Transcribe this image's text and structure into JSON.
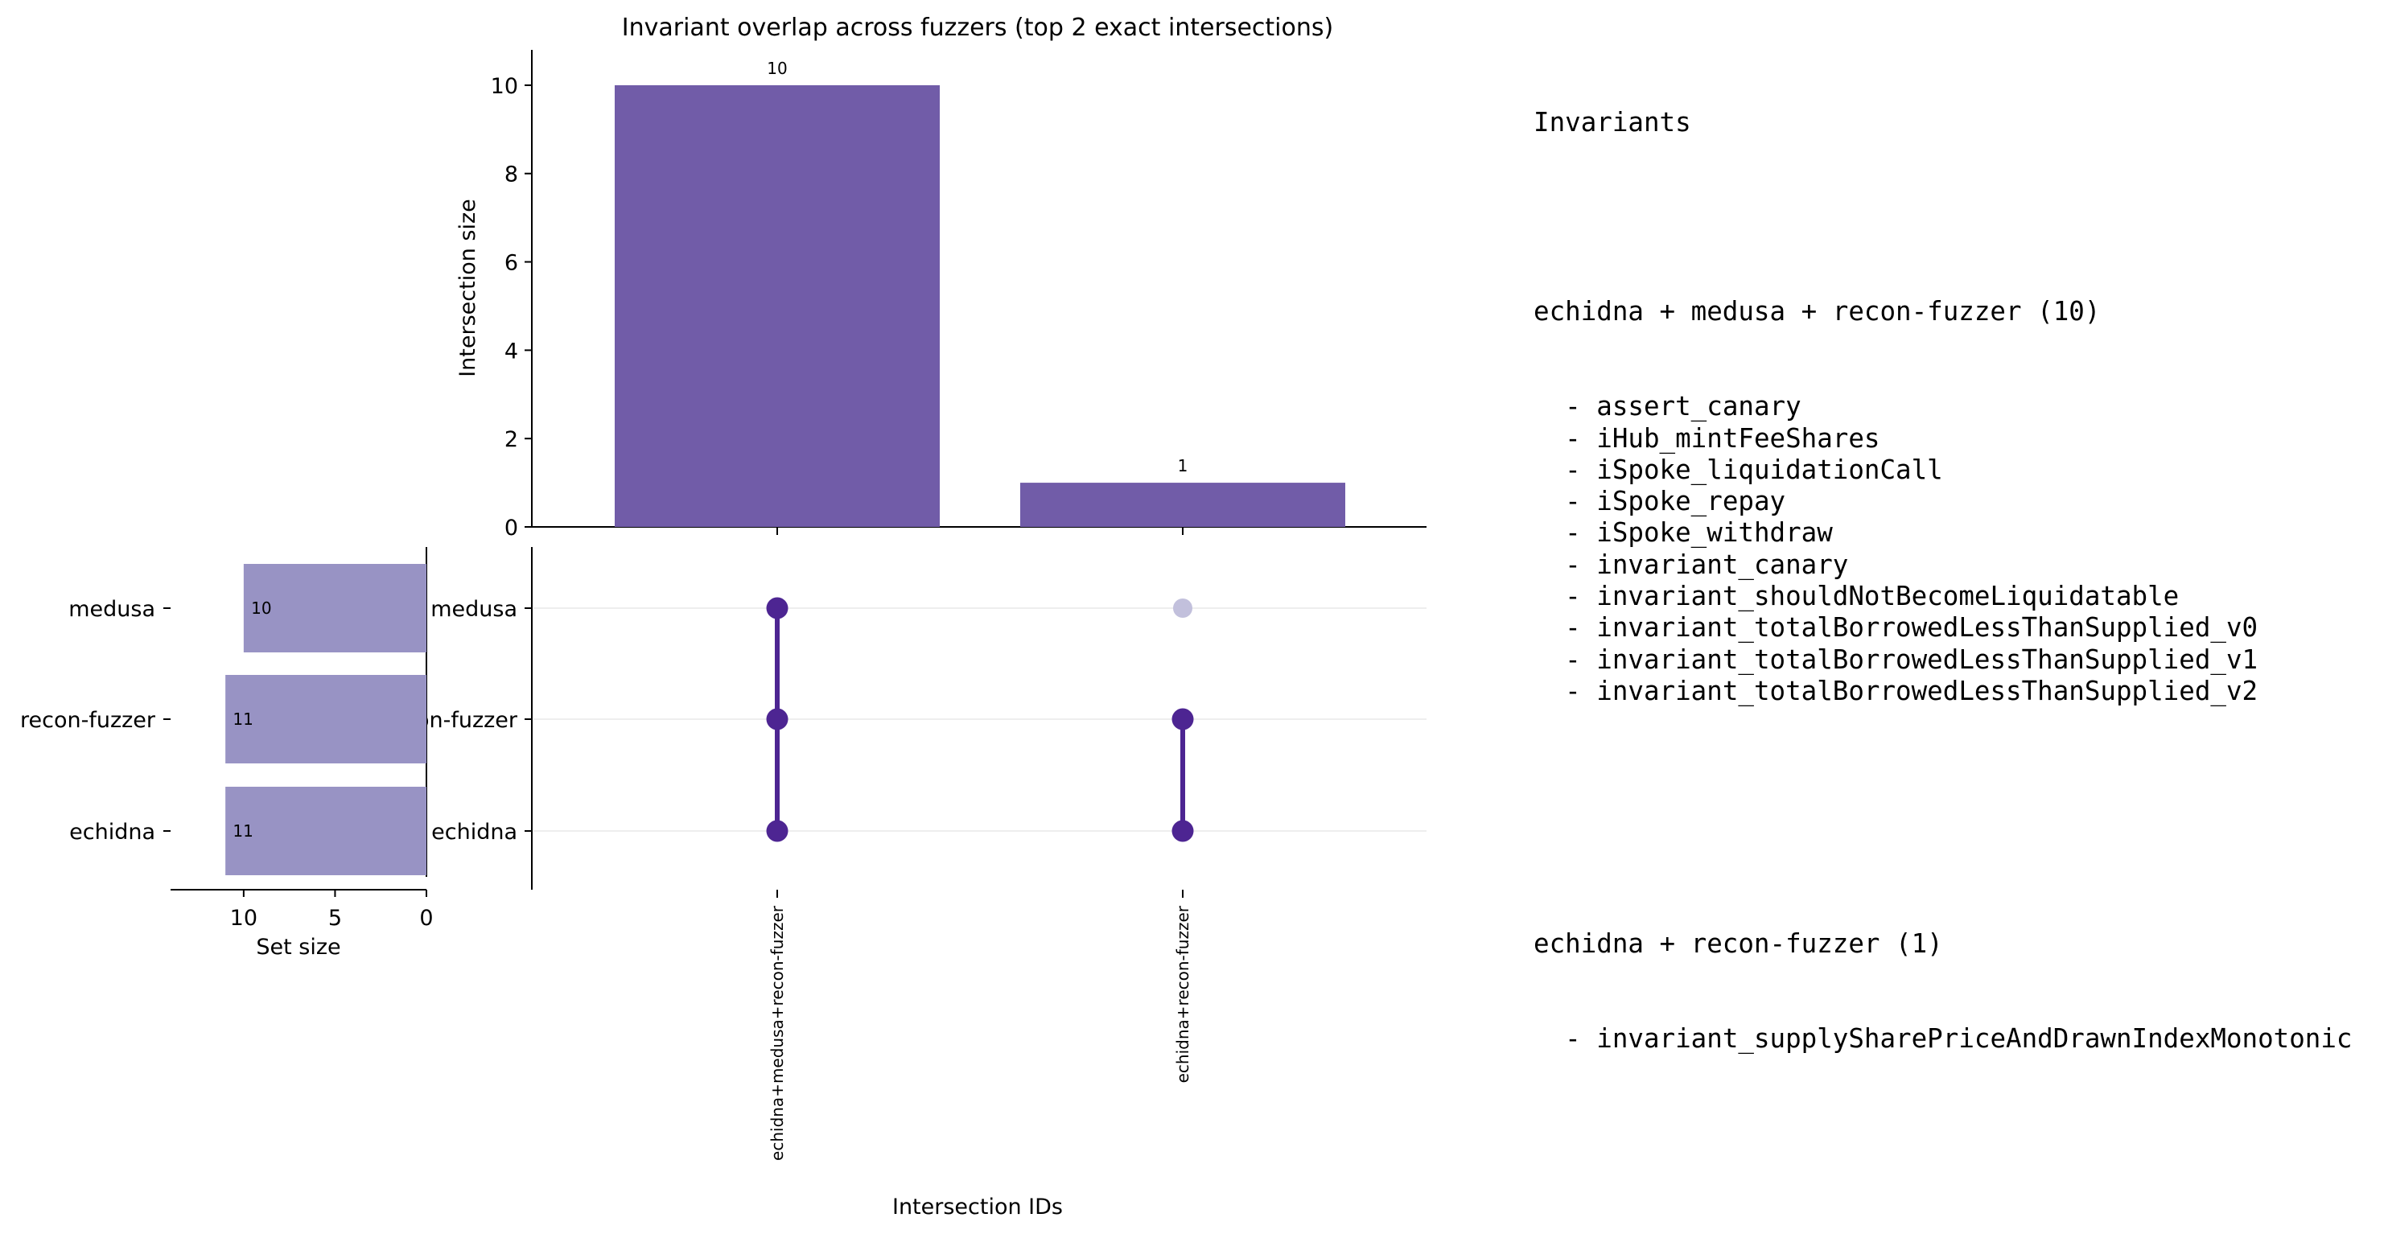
{
  "chart_data": {
    "type": "upset",
    "title": "Invariant overlap across fuzzers (top 2 exact intersections)",
    "sets": [
      "medusa",
      "recon-fuzzer",
      "echidna"
    ],
    "set_sizes": [
      10,
      11,
      11
    ],
    "set_size_axis": {
      "label": "Set size",
      "ticks": [
        "10",
        "5",
        "0"
      ],
      "reversed": true,
      "xlim": [
        0,
        14
      ]
    },
    "intersections": [
      {
        "id": "echidna+medusa+recon-fuzzer",
        "members": [
          "echidna",
          "medusa",
          "recon-fuzzer"
        ],
        "size": 10
      },
      {
        "id": "echidna+recon-fuzzer",
        "members": [
          "echidna",
          "recon-fuzzer"
        ],
        "size": 1
      }
    ],
    "ylabel": "Intersection size",
    "xlabel": "Intersection IDs",
    "ylim": [
      0,
      10.8
    ],
    "yticks": [
      "0",
      "2",
      "4",
      "6",
      "8",
      "10"
    ],
    "colors": {
      "bar": "#715ca8",
      "set_bar": "#9893c4",
      "dot_active": "#4d2592",
      "dot_inactive": "#c2c0dc",
      "connector": "#4d2592",
      "gridline": "#eeeeee"
    }
  },
  "legend": {
    "title": "Invariants",
    "groups": [
      {
        "title": "echidna + medusa + recon-fuzzer (10)",
        "items": [
          "assert_canary",
          "iHub_mintFeeShares",
          "iSpoke_liquidationCall",
          "iSpoke_repay",
          "iSpoke_withdraw",
          "invariant_canary",
          "invariant_shouldNotBecomeLiquidatable",
          "invariant_totalBorrowedLessThanSupplied_v0",
          "invariant_totalBorrowedLessThanSupplied_v1",
          "invariant_totalBorrowedLessThanSupplied_v2"
        ]
      },
      {
        "title": "echidna + recon-fuzzer (1)",
        "items": [
          "invariant_supplySharePriceAndDrawnIndexMonotonic"
        ]
      }
    ]
  }
}
